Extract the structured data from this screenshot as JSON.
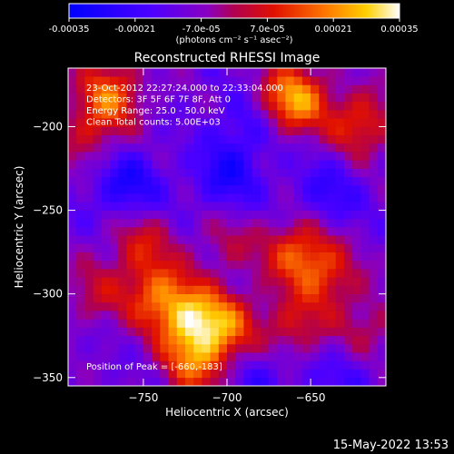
{
  "colorbar": {
    "tick_labels": [
      "-0.00035",
      "-0.00021",
      "-7.0e-05",
      "7.0e-05",
      "0.00021",
      "0.00035"
    ],
    "unit_label": "(photons cm⁻² s⁻¹ asec⁻²)",
    "min": -0.00035,
    "max": 0.00035
  },
  "chart_data": {
    "type": "heatmap",
    "title": "Reconstructed RHESSI Image",
    "xlabel": "Heliocentric X (arcsec)",
    "ylabel": "Heliocentric Y (arcsec)",
    "xlim": [
      -795,
      -605
    ],
    "ylim": [
      -355,
      -165
    ],
    "x_ticks": [
      -750,
      -700,
      -650
    ],
    "y_ticks": [
      -200,
      -250,
      -300,
      -350
    ],
    "x_tick_labels": [
      "−750",
      "−700",
      "−650"
    ],
    "y_tick_labels": [
      "−200",
      "−250",
      "−300",
      "−350"
    ],
    "grid": false,
    "annotations": [
      "23-Oct-2012 22:27:24.000 to 22:33:04.000",
      "Detectors: 3F 5F 6F 7F 8F, Att 0",
      "Energy Range: 25.0 - 50.0 keV",
      "Clean    Total counts: 5.00E+03"
    ],
    "peak_label": "Position of Peak = [-660,-183]",
    "sources": [
      {
        "x": -660,
        "y": -183,
        "value": 0.00035
      },
      {
        "x": -770,
        "y": -180,
        "value": 0.00026
      },
      {
        "x": -620,
        "y": -198,
        "value": 0.00022
      },
      {
        "x": -783,
        "y": -205,
        "value": 0.00014
      },
      {
        "x": -722,
        "y": -315,
        "value": 0.0003
      },
      {
        "x": -742,
        "y": -300,
        "value": 0.00024
      },
      {
        "x": -700,
        "y": -318,
        "value": 0.00022
      },
      {
        "x": -718,
        "y": -340,
        "value": 0.00026
      },
      {
        "x": -752,
        "y": -270,
        "value": 0.00016
      },
      {
        "x": -658,
        "y": -275,
        "value": 0.00024
      },
      {
        "x": -640,
        "y": -290,
        "value": 0.00018
      },
      {
        "x": -660,
        "y": -320,
        "value": 0.00016
      },
      {
        "x": -615,
        "y": -320,
        "value": 0.00012
      },
      {
        "x": -780,
        "y": -300,
        "value": 0.00012
      },
      {
        "x": -700,
        "y": -270,
        "value": 0.0001
      },
      {
        "x": -760,
        "y": -235,
        "value": -0.00018
      },
      {
        "x": -700,
        "y": -230,
        "value": -0.00016
      },
      {
        "x": -640,
        "y": -240,
        "value": -0.00012
      },
      {
        "x": -690,
        "y": -200,
        "value": -0.0001
      },
      {
        "x": -680,
        "y": -350,
        "value": -0.0001
      },
      {
        "x": -630,
        "y": -350,
        "value": -8e-05
      }
    ]
  },
  "footer": {
    "timestamp": "15-May-2022 13:53"
  }
}
